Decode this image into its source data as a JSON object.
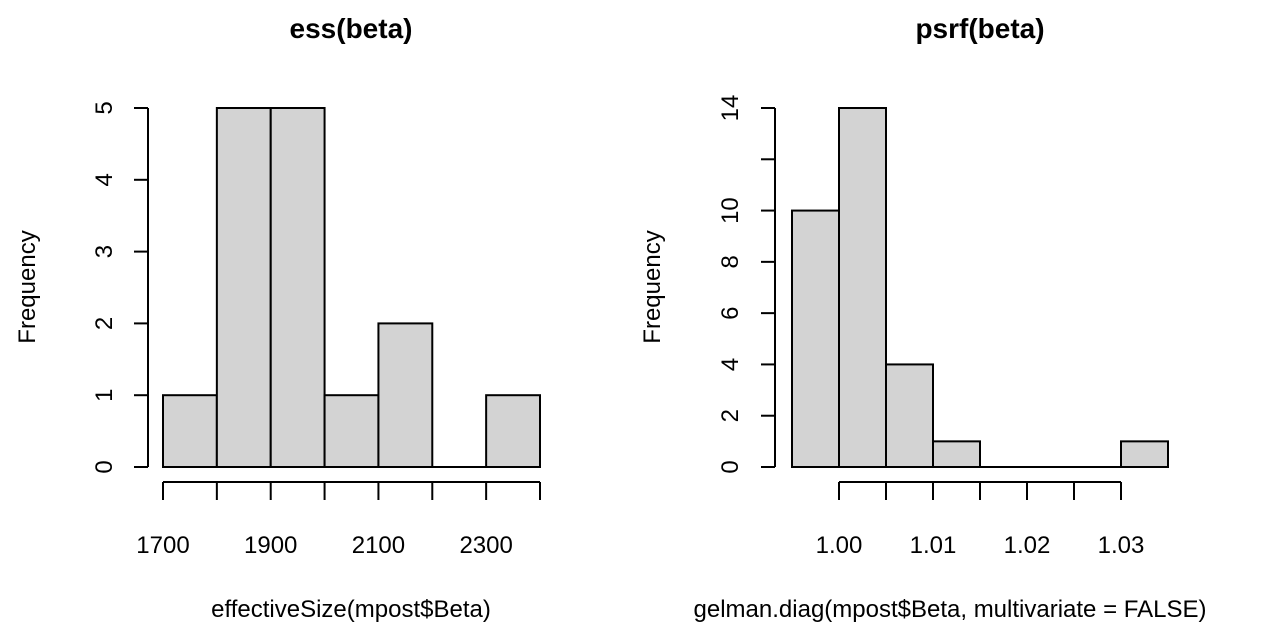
{
  "chart_data": [
    {
      "type": "histogram",
      "title": "ess(beta)",
      "xlabel": "effectiveSize(mpost$Beta)",
      "ylabel": "Frequency",
      "bins": [
        {
          "start": 1700,
          "end": 1800,
          "count": 1
        },
        {
          "start": 1800,
          "end": 1900,
          "count": 5
        },
        {
          "start": 1900,
          "end": 2000,
          "count": 5
        },
        {
          "start": 2000,
          "end": 2100,
          "count": 1
        },
        {
          "start": 2100,
          "end": 2200,
          "count": 2
        },
        {
          "start": 2200,
          "end": 2300,
          "count": 0
        },
        {
          "start": 2300,
          "end": 2400,
          "count": 1
        }
      ],
      "xlim": [
        1700,
        2400
      ],
      "ylim": [
        0,
        5
      ],
      "xticks": [
        1700,
        1800,
        1900,
        2000,
        2100,
        2200,
        2300,
        2400
      ],
      "xtick_labels": [
        "1700",
        "",
        "1900",
        "",
        "2100",
        "",
        "2300",
        ""
      ],
      "yticks": [
        0,
        1,
        2,
        3,
        4,
        5
      ],
      "ytick_labels": [
        "0",
        "1",
        "2",
        "3",
        "4",
        "5"
      ],
      "bar_color": "#d3d3d3",
      "grid": false
    },
    {
      "type": "histogram",
      "title": "psrf(beta)",
      "xlabel": "gelman.diag(mpost$Beta, multivariate = FALSE)",
      "ylabel": "Frequency",
      "bins": [
        {
          "start": 0.995,
          "end": 1.0,
          "count": 10
        },
        {
          "start": 1.0,
          "end": 1.005,
          "count": 14
        },
        {
          "start": 1.005,
          "end": 1.01,
          "count": 4
        },
        {
          "start": 1.01,
          "end": 1.015,
          "count": 1
        },
        {
          "start": 1.015,
          "end": 1.02,
          "count": 0
        },
        {
          "start": 1.02,
          "end": 1.025,
          "count": 0
        },
        {
          "start": 1.025,
          "end": 1.03,
          "count": 0
        },
        {
          "start": 1.03,
          "end": 1.035,
          "count": 1
        }
      ],
      "xlim": [
        0.995,
        1.035
      ],
      "ylim": [
        0,
        14
      ],
      "xticks": [
        1.0,
        1.005,
        1.01,
        1.015,
        1.02,
        1.025,
        1.03
      ],
      "xtick_labels": [
        "1.00",
        "",
        "1.01",
        "",
        "1.02",
        "",
        "1.03"
      ],
      "yticks": [
        0,
        2,
        4,
        6,
        8,
        10,
        12,
        14
      ],
      "ytick_labels": [
        "0",
        "2",
        "4",
        "6",
        "8",
        "10",
        "",
        "14"
      ],
      "bar_color": "#d3d3d3",
      "grid": false
    }
  ]
}
